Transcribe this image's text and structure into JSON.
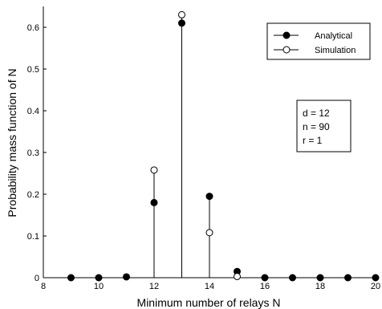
{
  "chart_data": {
    "type": "stem",
    "xlabel": "Minimum number of relays N",
    "ylabel": "Probability mass function of N",
    "xlim": [
      8,
      20
    ],
    "ylim": [
      0,
      0.65
    ],
    "xticks": [
      8,
      10,
      12,
      14,
      16,
      18,
      20
    ],
    "yticks": [
      0,
      0.1,
      0.2,
      0.3,
      0.4,
      0.5,
      0.6
    ],
    "xtick_labels": [
      "8",
      "10",
      "12",
      "14",
      "16",
      "18",
      "20"
    ],
    "ytick_labels": [
      "0",
      "0.1",
      "0.2",
      "0.3",
      "0.4",
      "0.5",
      "0.6"
    ],
    "grid": false,
    "legend_position": "top-right",
    "series": [
      {
        "name": "Analytical",
        "marker": "filled-circle",
        "x": [
          9,
          10,
          11,
          12,
          13,
          14,
          15,
          16,
          17,
          18,
          19,
          20
        ],
        "values": [
          0,
          0,
          0.002,
          0.18,
          0.61,
          0.195,
          0.015,
          0,
          0,
          0,
          0,
          0
        ]
      },
      {
        "name": "Simulation",
        "marker": "open-circle",
        "x": [
          12,
          13,
          14,
          15
        ],
        "values": [
          0.258,
          0.63,
          0.108,
          0.003
        ]
      }
    ],
    "annotation": {
      "lines": [
        "d = 12",
        "n = 90",
        "r = 1"
      ]
    }
  }
}
